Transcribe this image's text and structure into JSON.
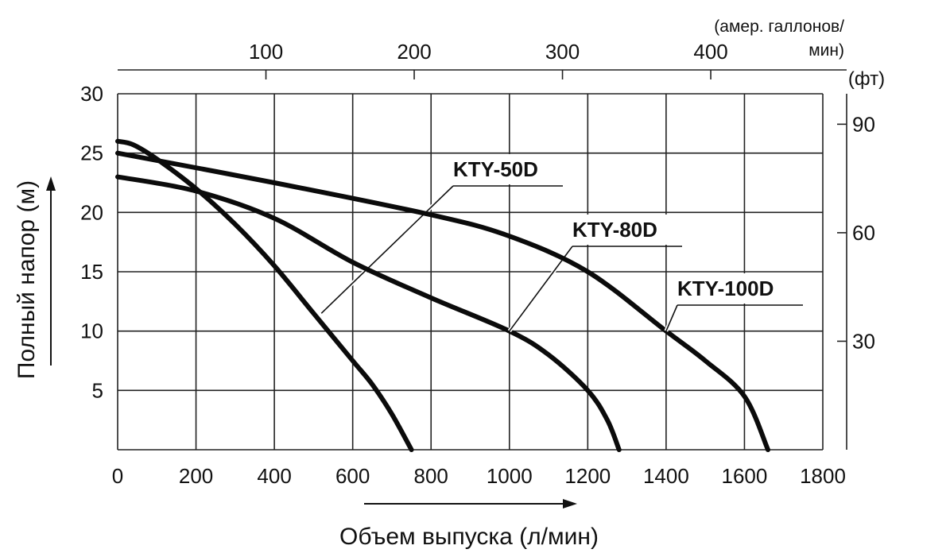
{
  "chart_data": {
    "type": "line",
    "xlabel": "Объем выпуска (л/мин)",
    "ylabel": "Полный напор (м)",
    "x_ticks": [
      "0",
      "200",
      "400",
      "600",
      "800",
      "1000",
      "1200",
      "1400",
      "1600",
      "1800"
    ],
    "y_ticks": [
      "5",
      "10",
      "15",
      "20",
      "25",
      "30"
    ],
    "xlim": [
      0,
      1800
    ],
    "ylim": [
      0,
      30
    ],
    "grid": true,
    "secondary_x": {
      "label_line1": "(амер. галлонов/",
      "label_line2": "мин)",
      "ticks": [
        "100",
        "200",
        "300",
        "400"
      ],
      "values": [
        100,
        200,
        300,
        400
      ]
    },
    "secondary_y": {
      "label": "(фт)",
      "ticks": [
        "30",
        "60",
        "90"
      ],
      "values": [
        30,
        60,
        90
      ]
    },
    "series": [
      {
        "name": "KTY-50D",
        "points": [
          [
            0,
            26
          ],
          [
            40,
            25.7
          ],
          [
            100,
            24.5
          ],
          [
            200,
            22.0
          ],
          [
            300,
            19.0
          ],
          [
            400,
            15.5
          ],
          [
            500,
            11.5
          ],
          [
            600,
            7.5
          ],
          [
            650,
            5.5
          ],
          [
            700,
            3.0
          ],
          [
            750,
            0
          ]
        ]
      },
      {
        "name": "KTY-80D",
        "points": [
          [
            0,
            23
          ],
          [
            200,
            21.8
          ],
          [
            400,
            19.5
          ],
          [
            600,
            15.8
          ],
          [
            800,
            12.8
          ],
          [
            1000,
            10.0
          ],
          [
            1100,
            8.0
          ],
          [
            1200,
            5.0
          ],
          [
            1250,
            2.5
          ],
          [
            1280,
            0
          ]
        ]
      },
      {
        "name": "KTY-100D",
        "points": [
          [
            0,
            25
          ],
          [
            400,
            22.5
          ],
          [
            800,
            19.8
          ],
          [
            1000,
            18.0
          ],
          [
            1200,
            15.0
          ],
          [
            1400,
            10.0
          ],
          [
            1500,
            7.5
          ],
          [
            1600,
            4.5
          ],
          [
            1660,
            0
          ]
        ]
      }
    ]
  }
}
